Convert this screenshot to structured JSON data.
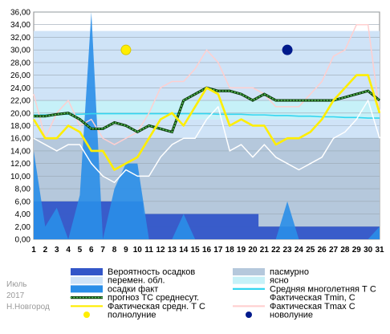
{
  "chart_data": {
    "type": "line",
    "ylim": [
      0,
      36
    ],
    "yticks": [
      "0,00",
      "2,00",
      "4,00",
      "6,00",
      "8,00",
      "10,00",
      "12,00",
      "14,00",
      "16,00",
      "18,00",
      "20,00",
      "22,00",
      "24,00",
      "26,00",
      "28,00",
      "30,00",
      "32,00",
      "34,00",
      "36,00"
    ],
    "x": [
      1,
      2,
      3,
      4,
      5,
      6,
      7,
      8,
      9,
      10,
      11,
      12,
      13,
      14,
      15,
      16,
      17,
      18,
      19,
      20,
      21,
      22,
      23,
      24,
      25,
      26,
      27,
      28,
      29,
      30,
      31
    ],
    "series": [
      {
        "name": "Вероятность осадков",
        "values": [
          6,
          6,
          6,
          6,
          6,
          6,
          6,
          6,
          6,
          6,
          4,
          4,
          4,
          4,
          4,
          4,
          4,
          4,
          4,
          4,
          2,
          2,
          2,
          2,
          2,
          2,
          2,
          2,
          2,
          2,
          2
        ]
      },
      {
        "name": "осадки факт",
        "values": [
          14,
          2,
          5,
          0,
          7,
          36,
          0,
          8,
          12,
          12,
          0,
          0,
          0,
          4,
          0,
          0,
          0,
          0,
          0,
          0,
          0,
          0,
          6,
          0,
          0,
          0,
          0,
          0,
          0,
          0,
          2
        ]
      },
      {
        "name": "Фактическая Tmax C",
        "values": [
          23,
          16,
          20,
          22,
          18,
          19,
          16,
          15,
          16,
          17,
          20,
          24,
          25,
          25,
          27,
          30,
          28,
          24,
          24,
          24,
          23,
          21,
          21,
          21,
          23,
          25,
          29,
          30,
          34,
          34,
          20
        ]
      },
      {
        "name": "Фактическая Tmin, C",
        "values": [
          16,
          15,
          14,
          15,
          15,
          12,
          10,
          9,
          11,
          10,
          10,
          13,
          15,
          16,
          16,
          19,
          21,
          14,
          15,
          13,
          15,
          13,
          12,
          11,
          12,
          13,
          16,
          17,
          19,
          22,
          16
        ]
      },
      {
        "name": "Средняя многолетняя Т С",
        "values": [
          19.7,
          19.7,
          19.8,
          19.8,
          19.8,
          19.9,
          19.9,
          19.9,
          19.9,
          19.9,
          19.9,
          19.9,
          19.9,
          19.9,
          19.9,
          19.9,
          19.8,
          19.8,
          19.8,
          19.7,
          19.7,
          19.6,
          19.6,
          19.5,
          19.5,
          19.4,
          19.4,
          19.3,
          19.3,
          19.2,
          19.2
        ]
      },
      {
        "name": "прогноз ТС среднесут.",
        "values": [
          19.5,
          19.5,
          19.8,
          20,
          19,
          17.5,
          17.5,
          18.5,
          18,
          17,
          18,
          17.5,
          17,
          22,
          23,
          24,
          23.5,
          23.5,
          23,
          22,
          23,
          22,
          22,
          22,
          22,
          22,
          22,
          22.5,
          23,
          23.5,
          22
        ]
      },
      {
        "name": "Фактическая средн. Т С",
        "values": [
          19,
          16,
          16,
          18,
          17,
          14,
          14,
          11,
          12,
          13,
          16,
          19,
          20,
          18,
          21,
          24,
          23,
          18,
          19,
          18,
          18,
          15,
          16,
          16,
          17,
          19,
          22,
          24,
          26,
          26,
          20
        ]
      }
    ],
    "cloud_bands": [
      {
        "from": 0,
        "to": 16,
        "type": "пасмурно"
      },
      {
        "from": 16,
        "to": 19,
        "type": "перемен. обл."
      },
      {
        "from": 19,
        "to": 22,
        "type": "ясно"
      },
      {
        "from": 22,
        "to": 33,
        "type": "перемен. обл."
      }
    ],
    "moon_phases": [
      {
        "day": 9,
        "phase": "полнолуние"
      },
      {
        "day": 23,
        "phase": "новолуние"
      }
    ],
    "legend": [
      {
        "label": "Вероятность осадков",
        "color": "#3356c8",
        "kind": "box"
      },
      {
        "label": "пасмурно",
        "color": "#b5c8dc",
        "kind": "box"
      },
      {
        "label": "перемен. обл.",
        "color": "#cfe3f7",
        "kind": "box"
      },
      {
        "label": "ясно",
        "color": "#c6f1f8",
        "kind": "box"
      },
      {
        "label": "осадки факт",
        "color": "#2a8ee8",
        "kind": "box"
      },
      {
        "label": "Средняя многолетняя Т С",
        "color": "#33d6f0",
        "kind": "line"
      },
      {
        "label": "прогноз ТС среднесут.",
        "color": "#1e7f1e",
        "kind": "dotted"
      },
      {
        "label": "Фактическая Tmin, C",
        "color": "#ffffff",
        "kind": "line"
      },
      {
        "label": "Фактическая средн. Т С",
        "color": "#ffee00",
        "kind": "line"
      },
      {
        "label": "Фактическая Tmax C",
        "color": "#ffcfcf",
        "kind": "line"
      },
      {
        "label": "полнолуние",
        "color": "#ffee00",
        "kind": "dot"
      },
      {
        "label": "новолуние",
        "color": "#001a8c",
        "kind": "dot"
      }
    ]
  },
  "meta": {
    "month": "Июль",
    "year": "2017",
    "city": "Н.Новгород"
  }
}
